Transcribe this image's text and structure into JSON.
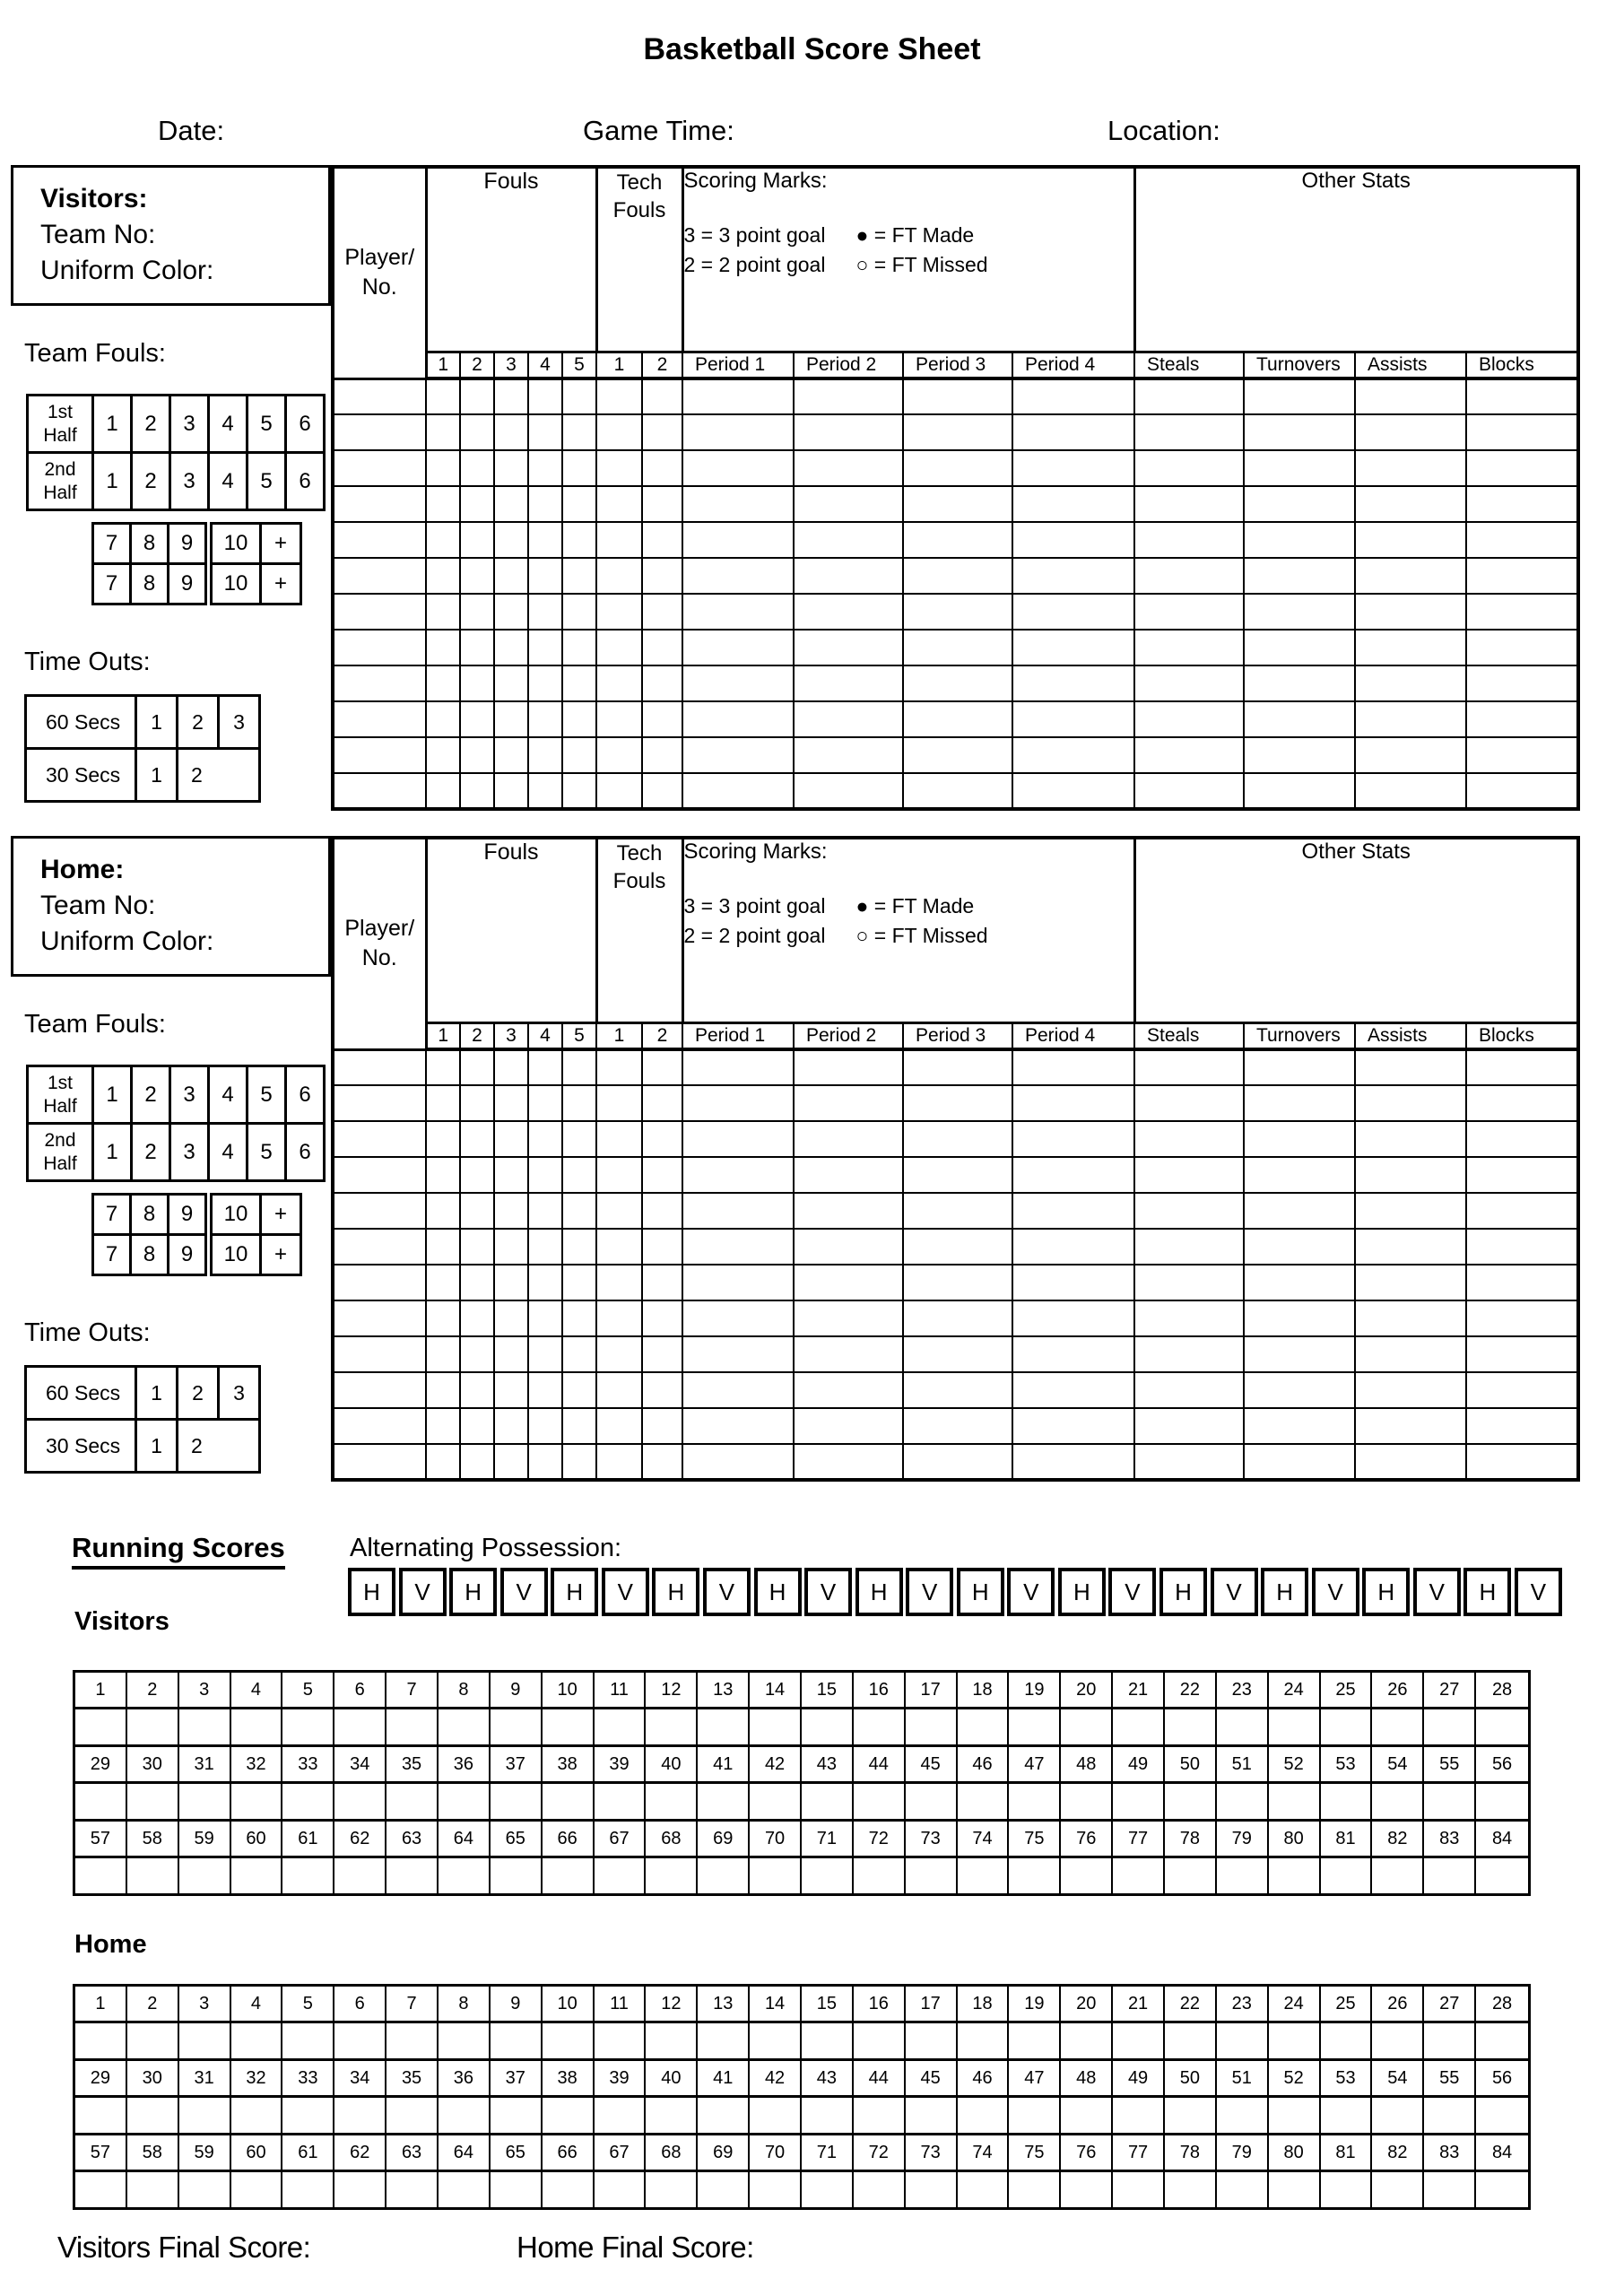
{
  "title": "Basketball Score Sheet",
  "meta": {
    "date_label": "Date:",
    "game_time_label": "Game Time:",
    "location_label": "Location:"
  },
  "sections": [
    {
      "id": "visitors",
      "heading": "Visitors:",
      "team_no_label": "Team No:",
      "uniform_color_label": "Uniform Color:",
      "player_no_label": [
        "Player/",
        "No."
      ],
      "fouls_label": "Fouls",
      "tech_fouls_label": [
        "Tech",
        "Fouls"
      ],
      "scoring_marks": {
        "title": "Scoring Marks:",
        "left_lines": [
          "3 = 3 point goal",
          "2 = 2 point goal"
        ],
        "right_lines": [
          "● = FT Made",
          "○ = FT Missed"
        ]
      },
      "other_stats_label": "Other Stats",
      "foul_columns": [
        "1",
        "2",
        "3",
        "4",
        "5"
      ],
      "tech_columns": [
        "1",
        "2"
      ],
      "period_columns": [
        "Period 1",
        "Period 2",
        "Period 3",
        "Period 4"
      ],
      "stat_columns": [
        "Steals",
        "Turnovers",
        "Assists",
        "Blocks"
      ],
      "data_row_count": 12,
      "team_fouls_label": "Team Fouls:",
      "team_fouls_rows": [
        {
          "label": [
            "1st",
            "Half"
          ],
          "cells": [
            "1",
            "2",
            "3",
            "4",
            "5",
            "6"
          ]
        },
        {
          "label": [
            "2nd",
            "Half"
          ],
          "cells": [
            "1",
            "2",
            "3",
            "4",
            "5",
            "6"
          ]
        }
      ],
      "bonus_fouls_rows": [
        [
          "7",
          "8",
          "9"
        ],
        [
          "7",
          "8",
          "9"
        ]
      ],
      "over_limit_rows": [
        [
          "10",
          "+"
        ],
        [
          "10",
          "+"
        ]
      ],
      "time_outs_label": "Time Outs:",
      "timeout_rows": [
        {
          "label": "60 Secs",
          "cells": [
            "1",
            "2",
            "3"
          ]
        },
        {
          "label": "30 Secs",
          "cells": [
            "1",
            "2"
          ]
        }
      ]
    },
    {
      "id": "home",
      "heading": "Home:",
      "team_no_label": "Team No:",
      "uniform_color_label": "Uniform Color:",
      "player_no_label": [
        "Player/",
        "No."
      ],
      "fouls_label": "Fouls",
      "tech_fouls_label": [
        "Tech",
        "Fouls"
      ],
      "scoring_marks": {
        "title": "Scoring Marks:",
        "left_lines": [
          "3 = 3 point goal",
          "2 = 2 point goal"
        ],
        "right_lines": [
          "● = FT Made",
          "○ = FT Missed"
        ]
      },
      "other_stats_label": "Other Stats",
      "foul_columns": [
        "1",
        "2",
        "3",
        "4",
        "5"
      ],
      "tech_columns": [
        "1",
        "2"
      ],
      "period_columns": [
        "Period 1",
        "Period 2",
        "Period 3",
        "Period 4"
      ],
      "stat_columns": [
        "Steals",
        "Turnovers",
        "Assists",
        "Blocks"
      ],
      "data_row_count": 12,
      "team_fouls_label": "Team Fouls:",
      "team_fouls_rows": [
        {
          "label": [
            "1st",
            "Half"
          ],
          "cells": [
            "1",
            "2",
            "3",
            "4",
            "5",
            "6"
          ]
        },
        {
          "label": [
            "2nd",
            "Half"
          ],
          "cells": [
            "1",
            "2",
            "3",
            "4",
            "5",
            "6"
          ]
        }
      ],
      "bonus_fouls_rows": [
        [
          "7",
          "8",
          "9"
        ],
        [
          "7",
          "8",
          "9"
        ]
      ],
      "over_limit_rows": [
        [
          "10",
          "+"
        ],
        [
          "10",
          "+"
        ]
      ],
      "time_outs_label": "Time Outs:",
      "timeout_rows": [
        {
          "label": "60 Secs",
          "cells": [
            "1",
            "2",
            "3"
          ]
        },
        {
          "label": "30 Secs",
          "cells": [
            "1",
            "2"
          ]
        }
      ]
    }
  ],
  "running": {
    "heading": "Running Scores",
    "possession_label": "Alternating Possession:",
    "possession_cells": [
      "H",
      "V",
      "H",
      "V",
      "H",
      "V",
      "H",
      "V",
      "H",
      "V",
      "H",
      "V",
      "H",
      "V",
      "H",
      "V",
      "H",
      "V",
      "H",
      "V",
      "H",
      "V",
      "H",
      "V"
    ],
    "teams": [
      {
        "label": "Visitors",
        "number_rows": [
          [
            1,
            2,
            3,
            4,
            5,
            6,
            7,
            8,
            9,
            10,
            11,
            12,
            13,
            14,
            15,
            16,
            17,
            18,
            19,
            20,
            21,
            22,
            23,
            24,
            25,
            26,
            27,
            28
          ],
          [
            29,
            30,
            31,
            32,
            33,
            34,
            35,
            36,
            37,
            38,
            39,
            40,
            41,
            42,
            43,
            44,
            45,
            46,
            47,
            48,
            49,
            50,
            51,
            52,
            53,
            54,
            55,
            56
          ],
          [
            57,
            58,
            59,
            60,
            61,
            62,
            63,
            64,
            65,
            66,
            67,
            68,
            69,
            70,
            71,
            72,
            73,
            74,
            75,
            76,
            77,
            78,
            79,
            80,
            81,
            82,
            83,
            84
          ]
        ]
      },
      {
        "label": "Home",
        "number_rows": [
          [
            1,
            2,
            3,
            4,
            5,
            6,
            7,
            8,
            9,
            10,
            11,
            12,
            13,
            14,
            15,
            16,
            17,
            18,
            19,
            20,
            21,
            22,
            23,
            24,
            25,
            26,
            27,
            28
          ],
          [
            29,
            30,
            31,
            32,
            33,
            34,
            35,
            36,
            37,
            38,
            39,
            40,
            41,
            42,
            43,
            44,
            45,
            46,
            47,
            48,
            49,
            50,
            51,
            52,
            53,
            54,
            55,
            56
          ],
          [
            57,
            58,
            59,
            60,
            61,
            62,
            63,
            64,
            65,
            66,
            67,
            68,
            69,
            70,
            71,
            72,
            73,
            74,
            75,
            76,
            77,
            78,
            79,
            80,
            81,
            82,
            83,
            84
          ]
        ]
      }
    ]
  },
  "footer": {
    "visitors_final_label": "Visitors Final Score:",
    "home_final_label": "Home Final Score:"
  }
}
